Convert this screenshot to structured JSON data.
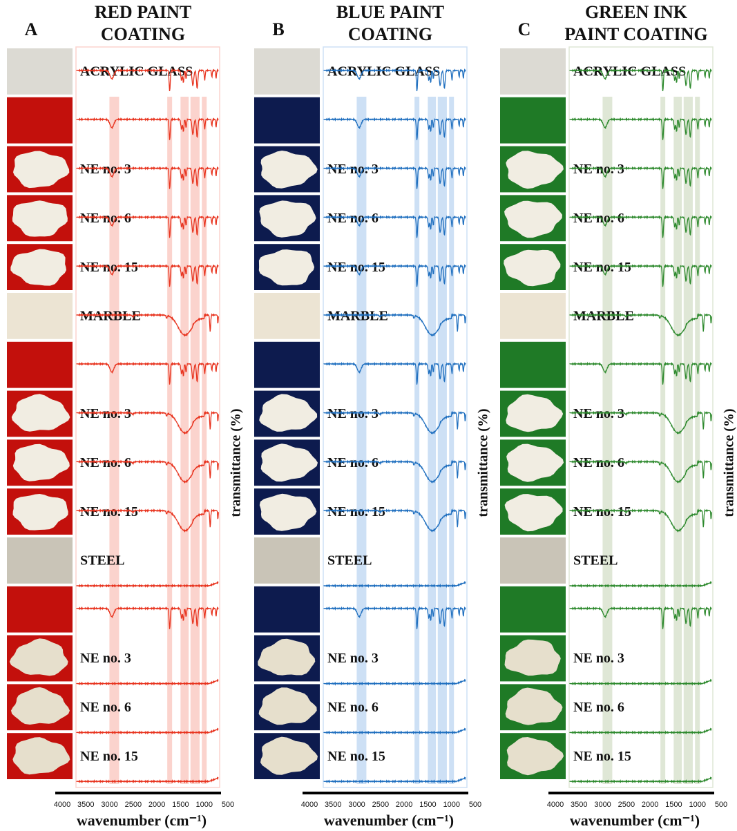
{
  "axis": {
    "x_label": "wavenumber (cm⁻¹)",
    "y_label": "transmittance (%)",
    "ticks": [
      4000,
      3500,
      3000,
      2500,
      2000,
      1500,
      1000,
      500
    ]
  },
  "panels": [
    {
      "letter": "A",
      "title": [
        "RED PAINT",
        "COATING"
      ],
      "color": "#e8341f",
      "band": "#fbd3cd",
      "substrates": [
        {
          "name": "ACRYLIC GLASS",
          "samples": [
            "NE no. 3",
            "NE no. 6",
            "NE no. 15"
          ]
        },
        {
          "name": "MARBLE",
          "samples": [
            "NE no. 3",
            "NE no. 6",
            "NE no. 15"
          ]
        },
        {
          "name": "STEEL",
          "samples": [
            "NE no. 3",
            "NE no. 6",
            "NE no. 15"
          ]
        }
      ]
    },
    {
      "letter": "B",
      "title": [
        "BLUE PAINT",
        "COATING"
      ],
      "color": "#1f6fbf",
      "band": "#cde0f5",
      "substrates": [
        {
          "name": "ACRYLIC GLASS",
          "samples": [
            "NE no. 3",
            "NE no. 6",
            "NE no. 15"
          ]
        },
        {
          "name": "MARBLE",
          "samples": [
            "NE no. 3",
            "NE no. 6",
            "NE no. 15"
          ]
        },
        {
          "name": "STEEL",
          "samples": [
            "NE no. 3",
            "NE no. 6",
            "NE no. 15"
          ]
        }
      ]
    },
    {
      "letter": "C",
      "title": [
        "GREEN INK",
        "PAINT COATING"
      ],
      "color": "#2e8a2e",
      "band": "#dfe7d6",
      "substrates": [
        {
          "name": "ACRYLIC GLASS",
          "samples": [
            "NE no. 3",
            "NE no. 6",
            "NE no. 15"
          ]
        },
        {
          "name": "MARBLE",
          "samples": [
            "NE no. 3",
            "NE no. 6",
            "NE no. 15"
          ]
        },
        {
          "name": "STEEL",
          "samples": [
            "NE no. 3",
            "NE no. 6",
            "NE no. 15"
          ]
        }
      ]
    }
  ]
}
